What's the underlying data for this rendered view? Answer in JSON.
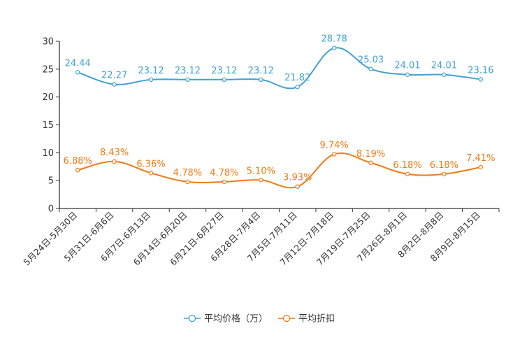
{
  "chart_data": {
    "type": "line",
    "categories": [
      "5月24日-5月30日",
      "5月31日-6月6日",
      "6月7日-6月13日",
      "6月14日-6月20日",
      "6月21日-6月27日",
      "6月28日-7月4日",
      "7月5日-7月11日",
      "7月12日-7月18日",
      "7月19日-7月25日",
      "7月26日-8月1日",
      "8月2日-8月8日",
      "8月9日-8月15日"
    ],
    "ylim": [
      0,
      30
    ],
    "yticks": [
      0,
      5,
      10,
      15,
      20,
      25,
      30
    ],
    "series": [
      {
        "name": "平均价格（万）",
        "color": "#3fa2d2",
        "values": [
          24.44,
          22.27,
          23.12,
          23.12,
          23.12,
          23.12,
          21.82,
          28.78,
          25.03,
          24.01,
          24.01,
          23.16
        ],
        "labels": [
          "24.44",
          "22.27",
          "23.12",
          "23.12",
          "23.12",
          "23.12",
          "21.82",
          "28.78",
          "25.03",
          "24.01",
          "24.01",
          "23.16"
        ]
      },
      {
        "name": "平均折扣",
        "color": "#f07a12",
        "values": [
          6.88,
          8.43,
          6.36,
          4.78,
          4.78,
          5.1,
          3.93,
          9.74,
          8.19,
          6.18,
          6.18,
          7.41
        ],
        "labels": [
          "6.88%",
          "8.43%",
          "6.36%",
          "4.78%",
          "4.78%",
          "5.10%",
          "3.93%",
          "9.74%",
          "8.19%",
          "6.18%",
          "6.18%",
          "7.41%"
        ]
      }
    ],
    "title": "",
    "xlabel": "",
    "ylabel": "",
    "legend_position": "bottom"
  }
}
